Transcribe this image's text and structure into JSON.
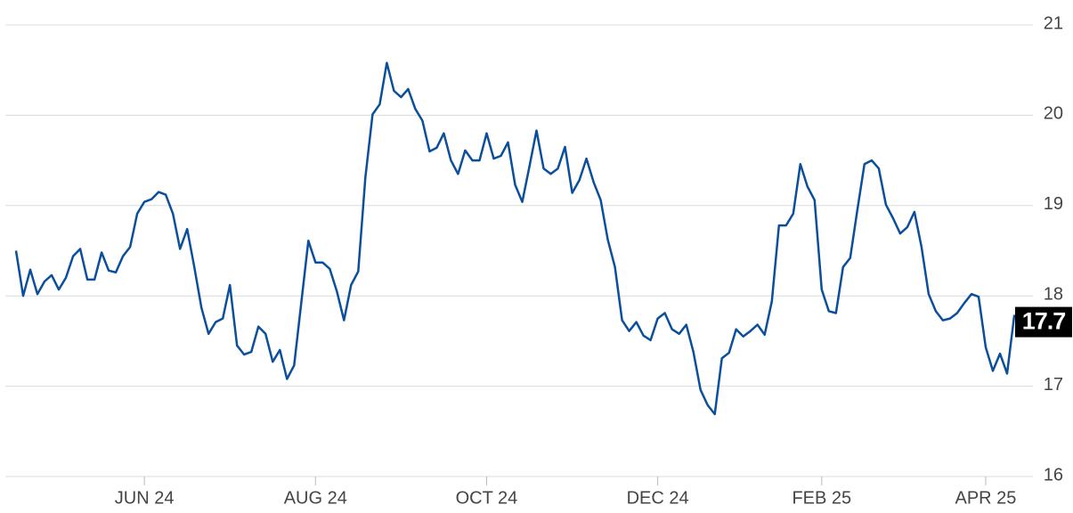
{
  "chart_data": {
    "type": "line",
    "categories": [
      null,
      null,
      null,
      null,
      null,
      null,
      null,
      null,
      null,
      null,
      null,
      null,
      null,
      null,
      null,
      null,
      null,
      null,
      "JUN 24",
      null,
      null,
      null,
      null,
      null,
      null,
      null,
      null,
      null,
      null,
      null,
      null,
      null,
      null,
      null,
      null,
      null,
      null,
      null,
      null,
      null,
      null,
      null,
      "AUG 24",
      null,
      null,
      null,
      null,
      null,
      null,
      null,
      null,
      null,
      null,
      null,
      null,
      null,
      null,
      null,
      null,
      null,
      null,
      null,
      null,
      null,
      null,
      null,
      "OCT 24",
      null,
      null,
      null,
      null,
      null,
      null,
      null,
      null,
      null,
      null,
      null,
      null,
      null,
      null,
      null,
      null,
      null,
      null,
      null,
      null,
      null,
      null,
      null,
      "DEC 24",
      null,
      null,
      null,
      null,
      null,
      null,
      null,
      null,
      null,
      null,
      null,
      null,
      null,
      null,
      null,
      null,
      null,
      null,
      null,
      null,
      null,
      null,
      "FEB 25",
      null,
      null,
      null,
      null,
      null,
      null,
      null,
      null,
      null,
      null,
      null,
      null,
      null,
      null,
      null,
      null,
      null,
      null,
      null,
      null,
      null,
      null,
      "APR 25",
      null,
      null,
      null,
      null,
      null
    ],
    "values": [
      18.5,
      18.0,
      18.29,
      18.02,
      18.16,
      18.23,
      18.07,
      18.2,
      18.44,
      18.52,
      18.18,
      18.18,
      18.48,
      18.28,
      18.26,
      18.44,
      18.54,
      18.91,
      19.04,
      19.07,
      19.15,
      19.12,
      18.91,
      18.52,
      18.74,
      18.32,
      17.87,
      17.58,
      17.71,
      17.75,
      18.12,
      17.45,
      17.35,
      17.38,
      17.66,
      17.58,
      17.27,
      17.4,
      17.08,
      17.23,
      17.92,
      18.61,
      18.37,
      18.37,
      18.3,
      18.05,
      17.73,
      18.12,
      18.27,
      19.31,
      20.01,
      20.12,
      20.58,
      20.27,
      20.2,
      20.29,
      20.07,
      19.94,
      19.6,
      19.64,
      19.8,
      19.5,
      19.35,
      19.61,
      19.5,
      19.5,
      19.8,
      19.52,
      19.55,
      19.7,
      19.23,
      19.04,
      19.43,
      19.83,
      19.41,
      19.35,
      19.41,
      19.65,
      19.14,
      19.28,
      19.52,
      19.26,
      19.06,
      18.62,
      18.32,
      17.73,
      17.61,
      17.71,
      17.56,
      17.51,
      17.75,
      17.81,
      17.63,
      17.58,
      17.68,
      17.38,
      16.96,
      16.79,
      16.69,
      17.31,
      17.37,
      17.63,
      17.55,
      17.61,
      17.68,
      17.57,
      17.94,
      18.78,
      18.78,
      18.91,
      19.46,
      19.21,
      19.06,
      18.07,
      17.83,
      17.81,
      18.32,
      18.42,
      18.95,
      19.46,
      19.5,
      19.41,
      19.01,
      18.86,
      18.69,
      18.76,
      18.93,
      18.54,
      18.02,
      17.83,
      17.73,
      17.75,
      17.81,
      17.92,
      18.02,
      17.99,
      17.43,
      17.17,
      17.36,
      17.14,
      17.78,
      17.71
    ],
    "color": "#0b4f9c",
    "last_value_label": "17.7",
    "ylim": [
      16,
      21
    ],
    "yticks": [
      16,
      17,
      18,
      19,
      20,
      21
    ],
    "grid": true
  }
}
